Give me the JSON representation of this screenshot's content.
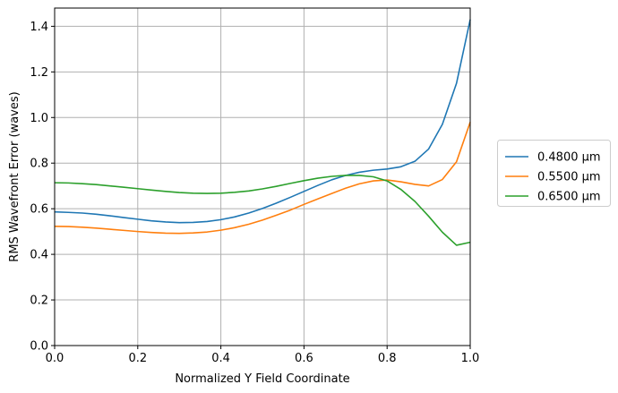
{
  "chart_data": {
    "type": "line",
    "title": "",
    "xlabel": "Normalized Y Field Coordinate",
    "ylabel": "RMS Wavefront Error (waves)",
    "xlim": [
      0.0,
      1.0
    ],
    "ylim": [
      0.0,
      1.48
    ],
    "xticks": [
      0.0,
      0.2,
      0.4,
      0.6,
      0.8,
      1.0
    ],
    "xtick_labels": [
      "0.0",
      "0.2",
      "0.4",
      "0.6",
      "0.8",
      "1.0"
    ],
    "yticks": [
      0.0,
      0.2,
      0.4,
      0.6,
      0.8,
      1.0,
      1.2,
      1.4
    ],
    "ytick_labels": [
      "0.0",
      "0.2",
      "0.4",
      "0.6",
      "0.8",
      "1.0",
      "1.2",
      "1.4"
    ],
    "grid": true,
    "legend_position": "outside-right",
    "x": [
      0.0,
      0.033,
      0.067,
      0.1,
      0.133,
      0.167,
      0.2,
      0.233,
      0.267,
      0.3,
      0.333,
      0.367,
      0.4,
      0.433,
      0.467,
      0.5,
      0.533,
      0.567,
      0.6,
      0.633,
      0.667,
      0.7,
      0.733,
      0.767,
      0.8,
      0.833,
      0.867,
      0.9,
      0.933,
      0.967,
      1.0
    ],
    "series": [
      {
        "name": "0.4800 µm",
        "color": "#1f77b4",
        "values": [
          0.586,
          0.584,
          0.581,
          0.576,
          0.569,
          0.561,
          0.554,
          0.547,
          0.542,
          0.539,
          0.54,
          0.544,
          0.552,
          0.564,
          0.581,
          0.601,
          0.624,
          0.65,
          0.676,
          0.702,
          0.727,
          0.746,
          0.76,
          0.769,
          0.774,
          0.784,
          0.808,
          0.862,
          0.97,
          1.15,
          1.43
        ]
      },
      {
        "name": "0.5500 µm",
        "color": "#ff7f0e",
        "values": [
          0.523,
          0.522,
          0.519,
          0.515,
          0.51,
          0.505,
          0.5,
          0.496,
          0.493,
          0.492,
          0.494,
          0.498,
          0.506,
          0.517,
          0.532,
          0.55,
          0.571,
          0.594,
          0.619,
          0.643,
          0.667,
          0.69,
          0.709,
          0.722,
          0.726,
          0.718,
          0.707,
          0.7,
          0.728,
          0.806,
          0.98
        ]
      },
      {
        "name": "0.6500 µm",
        "color": "#2ca02c",
        "values": [
          0.714,
          0.713,
          0.71,
          0.706,
          0.7,
          0.694,
          0.688,
          0.682,
          0.676,
          0.671,
          0.668,
          0.667,
          0.668,
          0.672,
          0.678,
          0.687,
          0.698,
          0.711,
          0.723,
          0.734,
          0.742,
          0.746,
          0.746,
          0.74,
          0.722,
          0.685,
          0.632,
          0.567,
          0.497,
          0.44,
          0.453
        ]
      }
    ]
  }
}
